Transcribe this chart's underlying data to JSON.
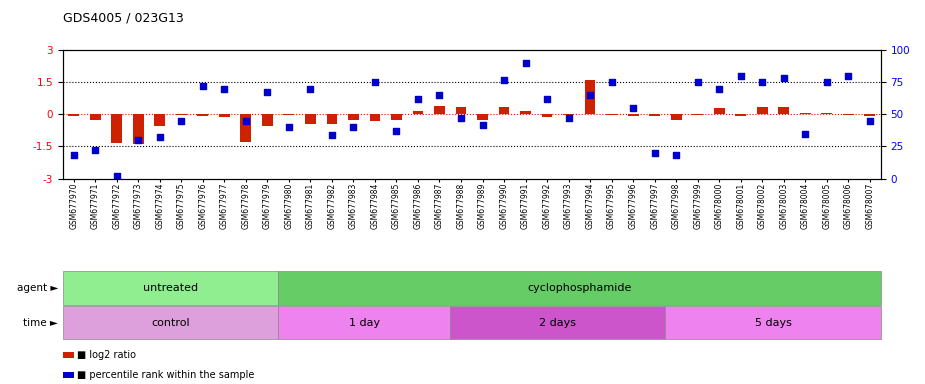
{
  "title": "GDS4005 / 023G13",
  "samples": [
    "GSM677970",
    "GSM677971",
    "GSM677972",
    "GSM677973",
    "GSM677974",
    "GSM677975",
    "GSM677976",
    "GSM677977",
    "GSM677978",
    "GSM677979",
    "GSM677980",
    "GSM677981",
    "GSM677982",
    "GSM677983",
    "GSM677984",
    "GSM677985",
    "GSM677986",
    "GSM677987",
    "GSM677988",
    "GSM677989",
    "GSM677990",
    "GSM677991",
    "GSM677992",
    "GSM677993",
    "GSM677994",
    "GSM677995",
    "GSM677996",
    "GSM677997",
    "GSM677998",
    "GSM677999",
    "GSM678000",
    "GSM678001",
    "GSM678002",
    "GSM678003",
    "GSM678004",
    "GSM678005",
    "GSM678006",
    "GSM678007"
  ],
  "log2_ratio": [
    -0.08,
    -0.25,
    -1.35,
    -1.4,
    -0.55,
    -0.05,
    -0.08,
    -0.15,
    -1.3,
    -0.55,
    -0.05,
    -0.45,
    -0.45,
    -0.28,
    -0.3,
    -0.25,
    0.15,
    0.4,
    0.35,
    -0.25,
    0.35,
    0.15,
    -0.12,
    -0.05,
    1.6,
    -0.05,
    -0.07,
    -0.08,
    -0.25,
    -0.05,
    0.3,
    -0.06,
    0.35,
    0.35,
    0.05,
    0.08,
    -0.05,
    -0.07
  ],
  "percentile": [
    18,
    22,
    2,
    30,
    32,
    45,
    72,
    70,
    45,
    67,
    40,
    70,
    34,
    40,
    75,
    37,
    62,
    65,
    47,
    42,
    77,
    90,
    62,
    47,
    65,
    75,
    55,
    20,
    18,
    75,
    70,
    80,
    75,
    78,
    35,
    75,
    80,
    45
  ],
  "agent_groups": [
    {
      "label": "untreated",
      "start": 0,
      "end": 10,
      "color": "#90EE90"
    },
    {
      "label": "cyclophosphamide",
      "start": 10,
      "end": 38,
      "color": "#66CC66"
    }
  ],
  "time_groups": [
    {
      "label": "control",
      "start": 0,
      "end": 10,
      "color": "#DDA0DD"
    },
    {
      "label": "1 day",
      "start": 10,
      "end": 18,
      "color": "#EE82EE"
    },
    {
      "label": "2 days",
      "start": 18,
      "end": 28,
      "color": "#CC55CC"
    },
    {
      "label": "5 days",
      "start": 28,
      "end": 38,
      "color": "#EE82EE"
    }
  ],
  "ylim_left": [
    -3,
    3
  ],
  "ylim_right": [
    0,
    100
  ],
  "bar_color": "#CC2200",
  "dot_color": "#0000CC",
  "bar_width": 0.5,
  "dot_size": 22
}
